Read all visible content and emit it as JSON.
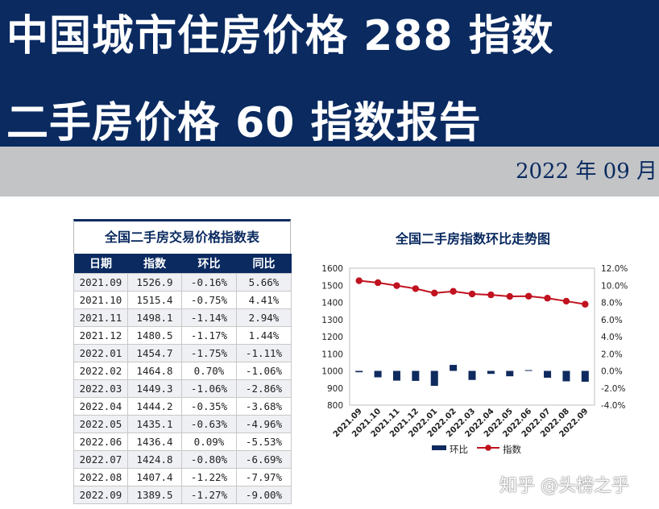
{
  "header": {
    "title_line1": "中国城市住房价格 288 指数",
    "title_line2": "二手房价格 60 指数报告",
    "date": "2022 年 09 月"
  },
  "table": {
    "title": "全国二手房交易价格指数表",
    "columns": [
      "日期",
      "指数",
      "环比",
      "同比"
    ],
    "rows": [
      [
        "2021.09",
        "1526.9",
        "-0.16%",
        "5.66%"
      ],
      [
        "2021.10",
        "1515.4",
        "-0.75%",
        "4.41%"
      ],
      [
        "2021.11",
        "1498.1",
        "-1.14%",
        "2.94%"
      ],
      [
        "2021.12",
        "1480.5",
        "-1.17%",
        "1.44%"
      ],
      [
        "2022.01",
        "1454.7",
        "-1.75%",
        "-1.11%"
      ],
      [
        "2022.02",
        "1464.8",
        "0.70%",
        "-1.06%"
      ],
      [
        "2022.03",
        "1449.3",
        "-1.06%",
        "-2.86%"
      ],
      [
        "2022.04",
        "1444.2",
        "-0.35%",
        "-3.68%"
      ],
      [
        "2022.05",
        "1435.1",
        "-0.63%",
        "-4.96%"
      ],
      [
        "2022.06",
        "1436.4",
        "0.09%",
        "-5.53%"
      ],
      [
        "2022.07",
        "1424.8",
        "-0.80%",
        "-6.69%"
      ],
      [
        "2022.08",
        "1407.4",
        "-1.22%",
        "-7.97%"
      ],
      [
        "2022.09",
        "1389.5",
        "-1.27%",
        "-9.00%"
      ]
    ]
  },
  "chart_data": {
    "type": "bar+line",
    "title": "全国二手房指数环比走势图",
    "categories": [
      "2021.09",
      "2021.10",
      "2021.11",
      "2021.12",
      "2022.01",
      "2022.02",
      "2022.03",
      "2022.04",
      "2022.05",
      "2022.06",
      "2022.07",
      "2022.08",
      "2022.09"
    ],
    "series": [
      {
        "name": "环比",
        "kind": "bar",
        "axis": "right",
        "color": "#0f2a5e",
        "values": [
          -0.16,
          -0.75,
          -1.14,
          -1.17,
          -1.75,
          0.7,
          -1.06,
          -0.35,
          -0.63,
          0.09,
          -0.8,
          -1.22,
          -1.27
        ]
      },
      {
        "name": "指数",
        "kind": "line",
        "axis": "left",
        "color": "#c0121f",
        "values": [
          1526.9,
          1515.4,
          1498.1,
          1480.5,
          1454.7,
          1464.8,
          1449.3,
          1444.2,
          1435.1,
          1436.4,
          1424.8,
          1407.4,
          1389.5
        ]
      }
    ],
    "left_axis": {
      "min": 800,
      "max": 1600,
      "ticks": [
        "800",
        "900",
        "1000",
        "1100",
        "1200",
        "1300",
        "1400",
        "1500",
        "1600"
      ]
    },
    "right_axis": {
      "min": -4,
      "max": 12,
      "ticks": [
        "-4.0%",
        "-2.0%",
        "0.0%",
        "2.0%",
        "4.0%",
        "6.0%",
        "8.0%",
        "10.0%",
        "12.0%"
      ]
    },
    "legend_position": "bottom",
    "grid": false
  },
  "watermark": "知乎 @头榜之乎"
}
